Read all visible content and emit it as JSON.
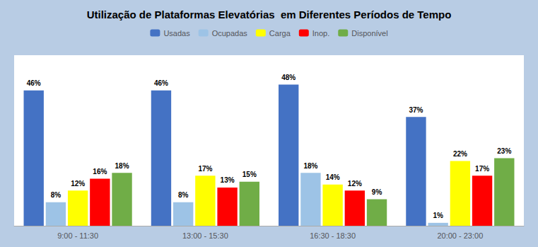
{
  "chart_data": {
    "type": "bar",
    "title": "Utilização de Plataformas Elevatórias  em Diferentes Períodos de Tempo",
    "categories": [
      "9:00 - 11:30",
      "13:00 - 15:30",
      "16:30 - 18:30",
      "20:00 - 23:00"
    ],
    "series": [
      {
        "name": "Usadas",
        "color": "#4472C4",
        "values": [
          46,
          46,
          48,
          37
        ],
        "value_labels": [
          "46%",
          "46%",
          "48%",
          "37%"
        ]
      },
      {
        "name": "Ocupadas",
        "color": "#9DC3E6",
        "values": [
          8,
          8,
          18,
          1
        ],
        "value_labels": [
          "8%",
          "8%",
          "18%",
          "1%"
        ]
      },
      {
        "name": "Carga",
        "color": "#FFFF00",
        "values": [
          12,
          17,
          14,
          22
        ],
        "value_labels": [
          "12%",
          "17%",
          "14%",
          "22%"
        ]
      },
      {
        "name": "Inop.",
        "color": "#FF0000",
        "values": [
          16,
          13,
          12,
          17
        ],
        "value_labels": [
          "16%",
          "13%",
          "12%",
          "17%"
        ]
      },
      {
        "name": "Disponível",
        "color": "#70AD47",
        "values": [
          18,
          15,
          9,
          23
        ],
        "value_labels": [
          "18%",
          "15%",
          "9%",
          "23%"
        ]
      }
    ],
    "ylim": [
      0,
      58
    ],
    "grid": false,
    "legend": "top",
    "data_labels": true,
    "tick_labels": "x"
  }
}
